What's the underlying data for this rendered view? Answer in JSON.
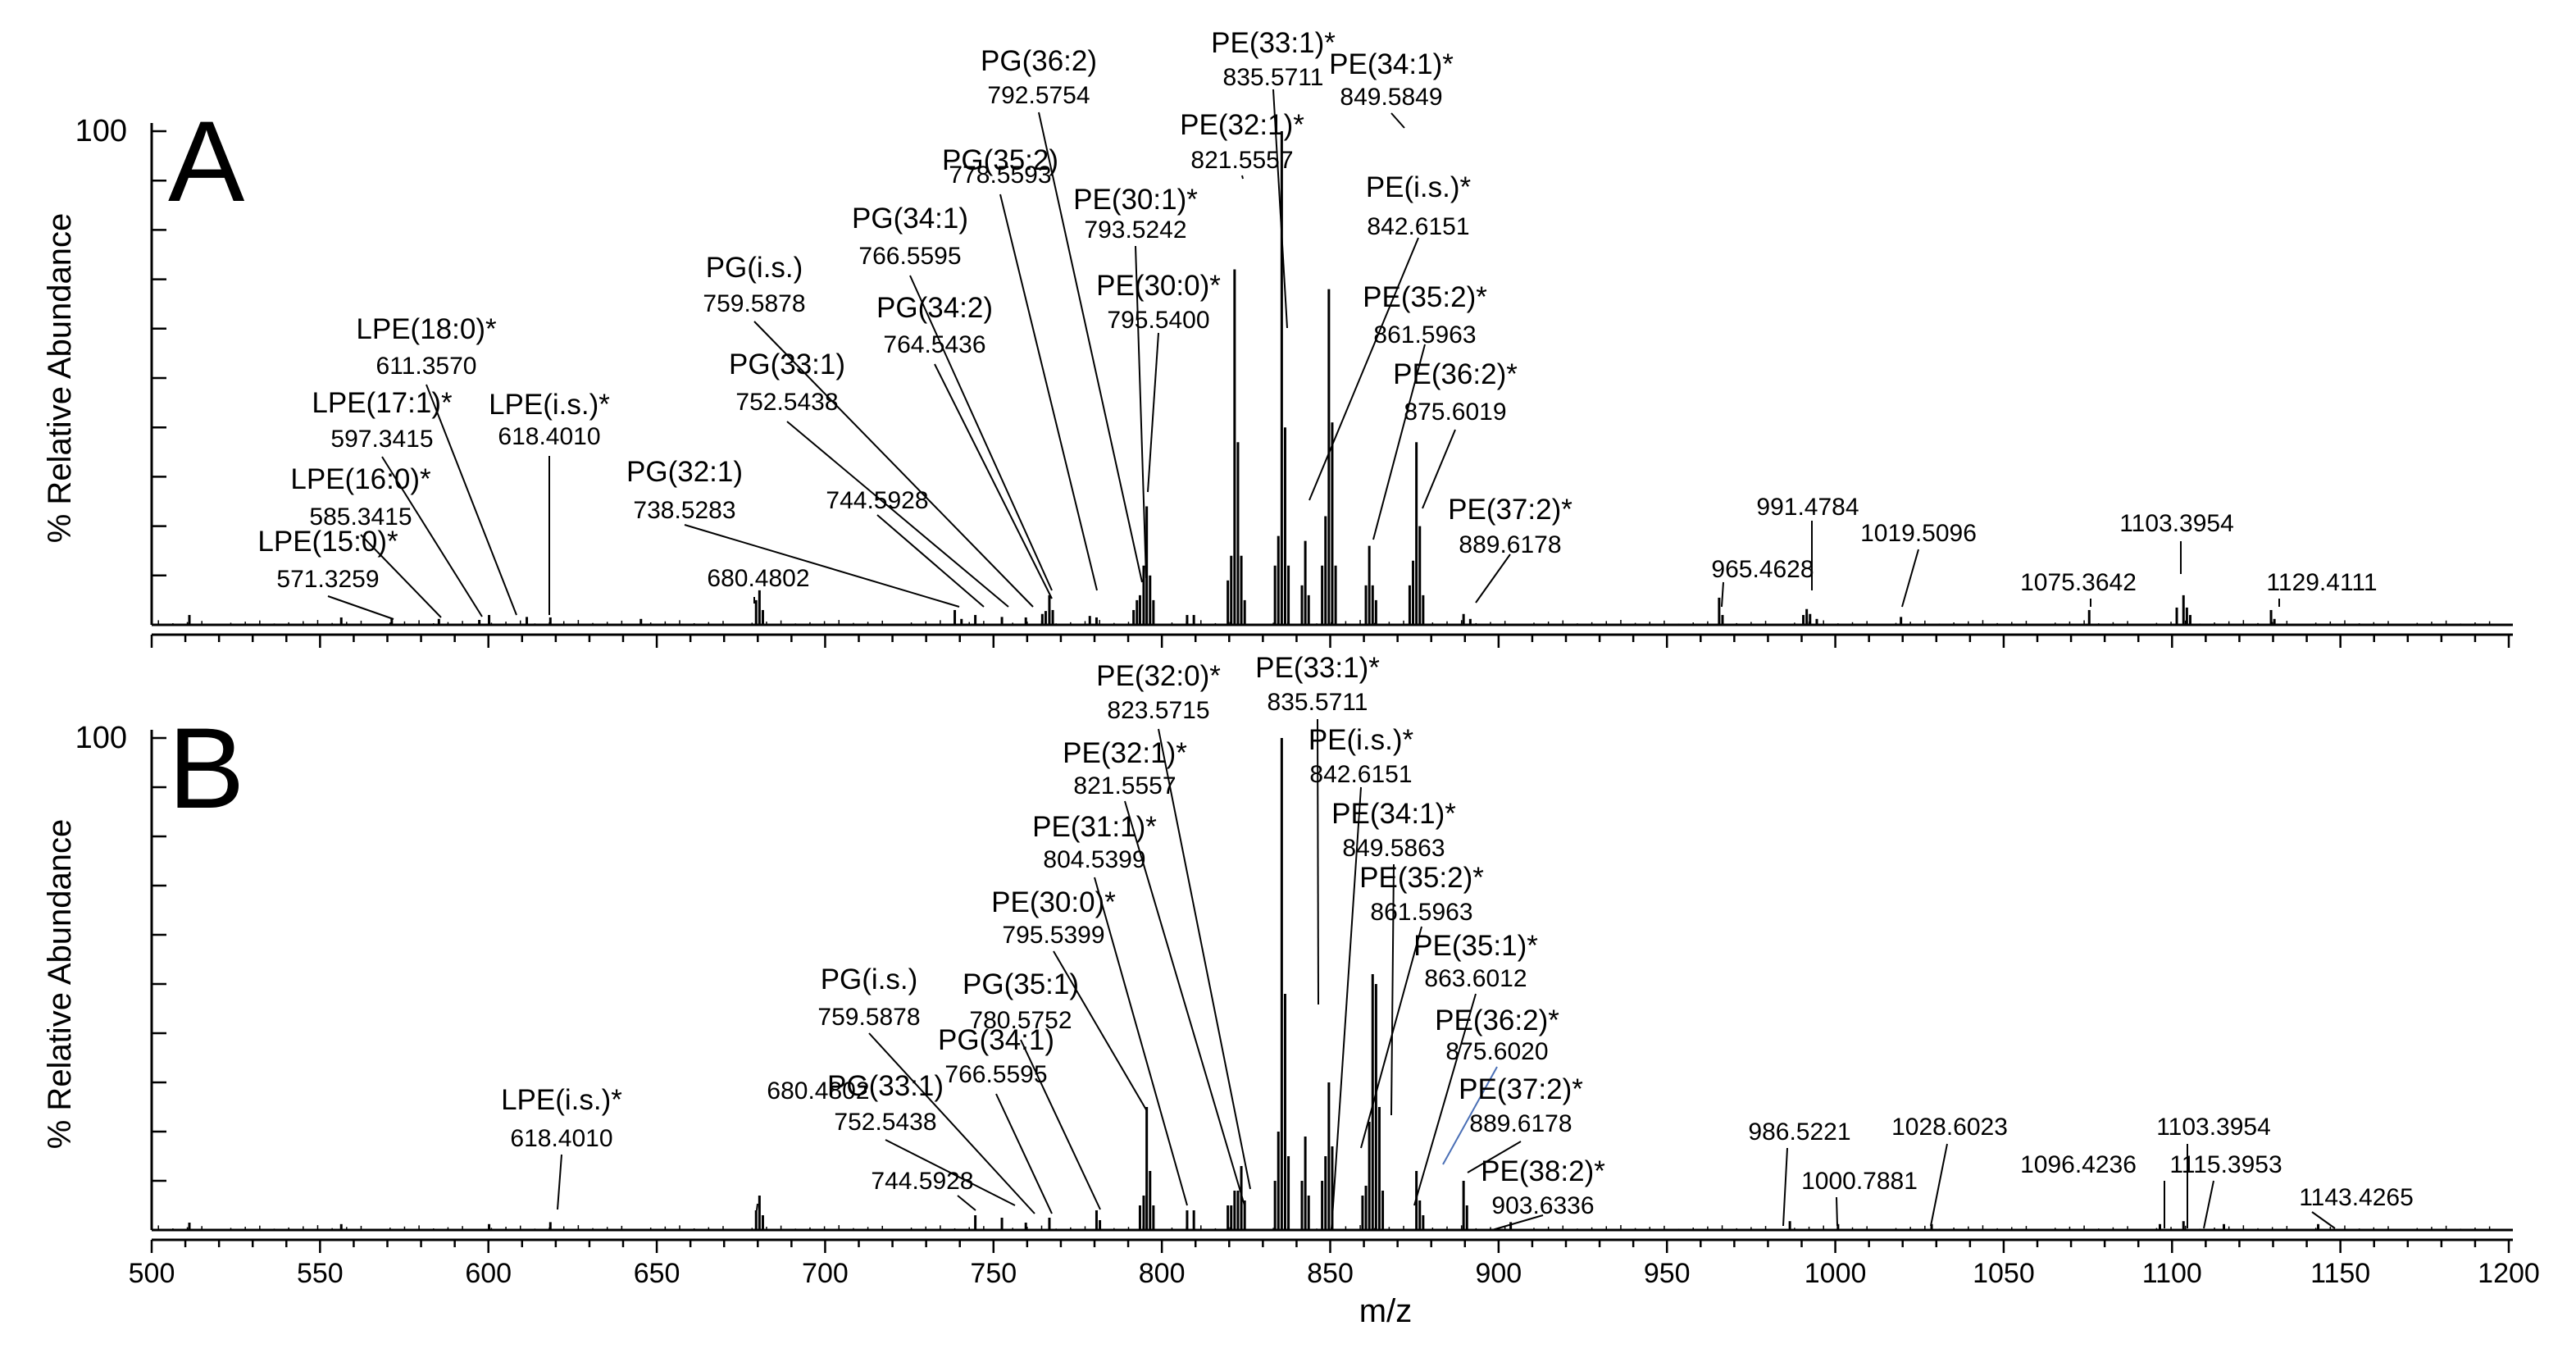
{
  "chart_data": {
    "type": "mass-spectrum",
    "x_axis": {
      "label": "m/z",
      "min": 500,
      "max": 1200,
      "major_step": 50,
      "minor_step": 10,
      "tick_labels": [
        "500",
        "550",
        "600",
        "650",
        "700",
        "750",
        "800",
        "850",
        "900",
        "950",
        "1000",
        "1050",
        "1100",
        "1150",
        "1200"
      ]
    },
    "panels": [
      {
        "letter": "A",
        "ylabel": "% Relative Abundance",
        "ytick": "100",
        "ylim": [
          0,
          100
        ],
        "peaks": [
          [
            511.2,
            2
          ],
          [
            556.3,
            1.5
          ],
          [
            571.3,
            1.2
          ],
          [
            585.3,
            1.2
          ],
          [
            597.3,
            1
          ],
          [
            600.2,
            2
          ],
          [
            611.4,
            1.6
          ],
          [
            618.4,
            1.5
          ],
          [
            645.3,
            1.2
          ],
          [
            679.5,
            5
          ],
          [
            680.5,
            7
          ],
          [
            681.5,
            3
          ],
          [
            738.5,
            3
          ],
          [
            740.5,
            1.2
          ],
          [
            744.6,
            2
          ],
          [
            752.5,
            1.6
          ],
          [
            759.6,
            1.5
          ],
          [
            764.5,
            2.2
          ],
          [
            765.5,
            2.8
          ],
          [
            766.6,
            6
          ],
          [
            767.6,
            3
          ],
          [
            778.6,
            1.8
          ],
          [
            780.6,
            1.5
          ],
          [
            791.6,
            3
          ],
          [
            792.6,
            5
          ],
          [
            793.5,
            6
          ],
          [
            794.6,
            12
          ],
          [
            795.5,
            24
          ],
          [
            796.5,
            10
          ],
          [
            797.5,
            5
          ],
          [
            807.5,
            2
          ],
          [
            809.5,
            2
          ],
          [
            819.6,
            9
          ],
          [
            820.6,
            14
          ],
          [
            821.6,
            72
          ],
          [
            822.6,
            37
          ],
          [
            823.6,
            14
          ],
          [
            824.6,
            5
          ],
          [
            833.6,
            12
          ],
          [
            834.6,
            18
          ],
          [
            835.6,
            100
          ],
          [
            836.6,
            40
          ],
          [
            837.6,
            12
          ],
          [
            841.6,
            8
          ],
          [
            842.6,
            17
          ],
          [
            843.6,
            6
          ],
          [
            847.6,
            12
          ],
          [
            848.6,
            22
          ],
          [
            849.6,
            68
          ],
          [
            850.6,
            41
          ],
          [
            851.6,
            12
          ],
          [
            860.6,
            8
          ],
          [
            861.6,
            16
          ],
          [
            862.6,
            8
          ],
          [
            863.6,
            5
          ],
          [
            873.6,
            8
          ],
          [
            874.6,
            13
          ],
          [
            875.6,
            37
          ],
          [
            876.6,
            20
          ],
          [
            877.6,
            6
          ],
          [
            889.6,
            2.2
          ],
          [
            891.6,
            1.2
          ],
          [
            965.5,
            5.5
          ],
          [
            966.5,
            2
          ],
          [
            990.5,
            2
          ],
          [
            991.5,
            3.2
          ],
          [
            992.5,
            2.2
          ],
          [
            994.5,
            1.2
          ],
          [
            1019.5,
            1.6
          ],
          [
            1075.4,
            3
          ],
          [
            1101.4,
            3.5
          ],
          [
            1103.4,
            6
          ],
          [
            1104.4,
            3.5
          ],
          [
            1105.4,
            2
          ],
          [
            1129.4,
            3
          ],
          [
            1130.4,
            1.2
          ]
        ],
        "annotations": [
          {
            "name": "LPE(15:0)*",
            "mz": "571.3259"
          },
          {
            "name": "LPE(16:0)*",
            "mz": "585.3415"
          },
          {
            "name": "LPE(17:1)*",
            "mz": "597.3415"
          },
          {
            "name": "LPE(18:0)*",
            "mz": "611.3570"
          },
          {
            "name": "LPE(i.s.)*",
            "mz": "618.4010"
          },
          {
            "name": "",
            "mz": "680.4802"
          },
          {
            "name": "PG(32:1)",
            "mz": "738.5283"
          },
          {
            "name": "",
            "mz": "744.5928"
          },
          {
            "name": "PG(33:1)",
            "mz": "752.5438"
          },
          {
            "name": "PG(i.s.)",
            "mz": "759.5878"
          },
          {
            "name": "PG(34:2)",
            "mz": "764.5436"
          },
          {
            "name": "PG(34:1)",
            "mz": "766.5595"
          },
          {
            "name": "PG(35:2)",
            "mz": "778.5593"
          },
          {
            "name": "PG(36:2)",
            "mz": "792.5754"
          },
          {
            "name": "PE(30:1)*",
            "mz": "793.5242"
          },
          {
            "name": "PE(30:0)*",
            "mz": "795.5400"
          },
          {
            "name": "PE(32:1)*",
            "mz": "821.5557"
          },
          {
            "name": "PE(33:1)*",
            "mz": "835.5711"
          },
          {
            "name": "PE(34:1)*",
            "mz": "849.5849"
          },
          {
            "name": "PE(i.s.)*",
            "mz": "842.6151"
          },
          {
            "name": "PE(35:2)*",
            "mz": "861.5963"
          },
          {
            "name": "PE(36:2)*",
            "mz": "875.6019"
          },
          {
            "name": "PE(37:2)*",
            "mz": "889.6178"
          },
          {
            "name": "",
            "mz": "965.4628"
          },
          {
            "name": "",
            "mz": "991.4784"
          },
          {
            "name": "",
            "mz": "1019.5096"
          },
          {
            "name": "",
            "mz": "1075.3642"
          },
          {
            "name": "",
            "mz": "1103.3954"
          },
          {
            "name": "",
            "mz": "1129.4111"
          }
        ]
      },
      {
        "letter": "B",
        "ylabel": "% Relative Abundance",
        "ytick": "100",
        "ylim": [
          0,
          100
        ],
        "peaks": [
          [
            511.2,
            1.5
          ],
          [
            556.3,
            1.2
          ],
          [
            600.2,
            1.2
          ],
          [
            618.4,
            1.6
          ],
          [
            679.5,
            4
          ],
          [
            680.5,
            7
          ],
          [
            681.5,
            3
          ],
          [
            744.6,
            3
          ],
          [
            752.5,
            2.5
          ],
          [
            759.6,
            1.5
          ],
          [
            766.6,
            2.5
          ],
          [
            780.6,
            4
          ],
          [
            781.6,
            2
          ],
          [
            793.5,
            5
          ],
          [
            794.6,
            7
          ],
          [
            795.5,
            25
          ],
          [
            796.5,
            12
          ],
          [
            797.5,
            5
          ],
          [
            807.5,
            4
          ],
          [
            809.5,
            4
          ],
          [
            819.6,
            5
          ],
          [
            820.6,
            5
          ],
          [
            821.6,
            8
          ],
          [
            822.6,
            8
          ],
          [
            823.6,
            13
          ],
          [
            824.6,
            6
          ],
          [
            833.6,
            10
          ],
          [
            834.6,
            20
          ],
          [
            835.6,
            100
          ],
          [
            836.6,
            48
          ],
          [
            837.6,
            15
          ],
          [
            841.6,
            10
          ],
          [
            842.6,
            19
          ],
          [
            843.6,
            7
          ],
          [
            847.6,
            10
          ],
          [
            848.6,
            15
          ],
          [
            849.6,
            30
          ],
          [
            850.6,
            17
          ],
          [
            859.6,
            7
          ],
          [
            860.6,
            9
          ],
          [
            861.6,
            22
          ],
          [
            862.6,
            52
          ],
          [
            863.6,
            50
          ],
          [
            864.6,
            25
          ],
          [
            865.6,
            8
          ],
          [
            875.6,
            12
          ],
          [
            876.6,
            6
          ],
          [
            877.6,
            3
          ],
          [
            889.6,
            10
          ],
          [
            890.6,
            5
          ],
          [
            903.6,
            1.6
          ],
          [
            986.5,
            1.8
          ],
          [
            1000.8,
            1.2
          ],
          [
            1028.6,
            1.2
          ],
          [
            1096.4,
            1.2
          ],
          [
            1103.4,
            1.8
          ],
          [
            1115.4,
            1.2
          ],
          [
            1143.4,
            1.2
          ]
        ],
        "annotations": [
          {
            "name": "LPE(i.s.)*",
            "mz": "618.4010"
          },
          {
            "name": "",
            "mz": "680.4802"
          },
          {
            "name": "PG(33:1)",
            "mz": "752.5438"
          },
          {
            "name": "",
            "mz": "744.5928"
          },
          {
            "name": "PG(i.s.)",
            "mz": "759.5878"
          },
          {
            "name": "PG(34:1)",
            "mz": "766.5595"
          },
          {
            "name": "PG(35:1)",
            "mz": "780.5752"
          },
          {
            "name": "PE(30:0)*",
            "mz": "795.5399"
          },
          {
            "name": "PE(31:1)*",
            "mz": "804.5399"
          },
          {
            "name": "PE(32:1)*",
            "mz": "821.5557"
          },
          {
            "name": "PE(32:0)*",
            "mz": "823.5715"
          },
          {
            "name": "PE(33:1)*",
            "mz": "835.5711"
          },
          {
            "name": "PE(i.s.)*",
            "mz": "842.6151"
          },
          {
            "name": "PE(34:1)*",
            "mz": "849.5863"
          },
          {
            "name": "PE(35:2)*",
            "mz": "861.5963"
          },
          {
            "name": "PE(35:1)*",
            "mz": "863.6012"
          },
          {
            "name": "PE(36:2)*",
            "mz": "875.6020"
          },
          {
            "name": "PE(37:2)*",
            "mz": "889.6178"
          },
          {
            "name": "PE(38:2)*",
            "mz": "903.6336"
          },
          {
            "name": "",
            "mz": "986.5221"
          },
          {
            "name": "",
            "mz": "1000.7881"
          },
          {
            "name": "",
            "mz": "1028.6023"
          },
          {
            "name": "",
            "mz": "1096.4236"
          },
          {
            "name": "",
            "mz": "1103.3954"
          },
          {
            "name": "",
            "mz": "1115.3953"
          },
          {
            "name": "",
            "mz": "1143.4265"
          }
        ]
      }
    ]
  }
}
